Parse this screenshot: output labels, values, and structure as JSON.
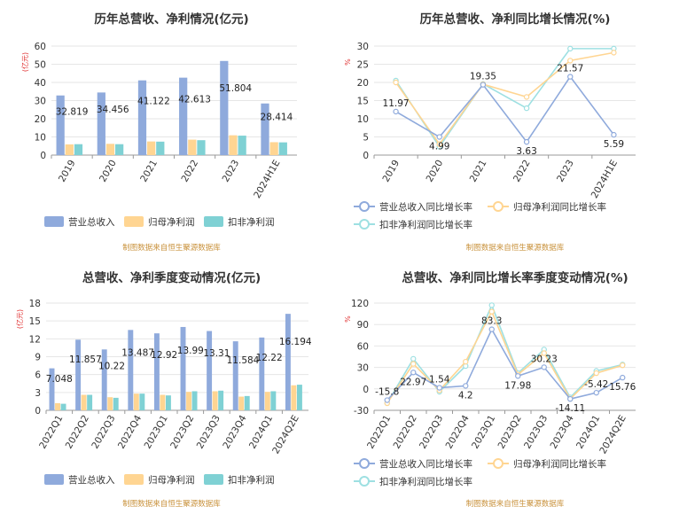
{
  "source_note": "制图数据来自恒生聚源数据库",
  "colors": {
    "revenue": "#8faadc",
    "profit": "#ffd592",
    "deducted": "#7fd1d4",
    "axis": "#666666",
    "grid": "#e6e6e6",
    "unit": "#e03030",
    "source": "#c9923c"
  },
  "chart_data": [
    {
      "type": "bar",
      "title": "历年总营收、净利情况(亿元)",
      "ylabel": "(亿元)",
      "ylim": [
        0,
        60
      ],
      "yticks": [
        0,
        10,
        20,
        30,
        40,
        50,
        60
      ],
      "categories": [
        "2019",
        "2020",
        "2021",
        "2022",
        "2023",
        "2024H1E"
      ],
      "series": [
        {
          "name": "营业总收入",
          "values": [
            32.819,
            34.456,
            41.122,
            42.613,
            51.804,
            28.414
          ],
          "labels": [
            "32.819",
            "34.456",
            "41.122",
            "42.613",
            "51.804",
            "28.414"
          ],
          "color": "#8faadc"
        },
        {
          "name": "归母净利润",
          "values": [
            5.9,
            6.2,
            7.5,
            8.5,
            10.9,
            7.1
          ],
          "color": "#ffd592"
        },
        {
          "name": "扣非净利润",
          "values": [
            6.0,
            6.0,
            7.4,
            8.2,
            10.7,
            7.0
          ],
          "color": "#7fd1d4"
        }
      ],
      "legend_position": "bottom"
    },
    {
      "type": "line",
      "title": "历年总营收、净利同比增长情况(%)",
      "ylabel": "%",
      "ylim": [
        0,
        30
      ],
      "yticks": [
        0,
        5,
        10,
        15,
        20,
        25,
        30
      ],
      "categories": [
        "2019",
        "2020",
        "2021",
        "2022",
        "2023",
        "2024H1E"
      ],
      "series": [
        {
          "name": "营业总收入同比增长率",
          "values": [
            11.97,
            4.99,
            19.35,
            3.63,
            21.57,
            5.59
          ],
          "labels": [
            "11.97",
            "4.99",
            "19.35",
            "3.63",
            "21.57",
            "5.59"
          ],
          "color": "#8faadc"
        },
        {
          "name": "归母净利润同比增长率",
          "values": [
            20.0,
            3.0,
            19.5,
            16.0,
            26.0,
            28.2
          ],
          "color": "#ffd592"
        },
        {
          "name": "扣非净利润同比增长率",
          "values": [
            20.5,
            2.3,
            19.6,
            12.9,
            29.3,
            29.3
          ],
          "color": "#9ee0e2"
        }
      ],
      "legend_position": "bottom"
    },
    {
      "type": "bar",
      "title": "总营收、净利季度变动情况(亿元)",
      "ylabel": "(亿元)",
      "ylim": [
        0,
        18
      ],
      "yticks": [
        0,
        3,
        6,
        9,
        12,
        15,
        18
      ],
      "categories": [
        "2022Q1",
        "2022Q2",
        "2022Q3",
        "2022Q4",
        "2023Q1",
        "2023Q2",
        "2023Q3",
        "2023Q4",
        "2024Q1",
        "2024Q2E"
      ],
      "series": [
        {
          "name": "营业总收入",
          "values": [
            7.048,
            11.857,
            10.22,
            13.487,
            12.92,
            13.99,
            13.31,
            11.584,
            12.22,
            16.194
          ],
          "labels": [
            "7.048",
            "11.857",
            "10.22",
            "13.487",
            "12.92",
            "13.99",
            "13.31",
            "11.584",
            "12.22",
            "16.194"
          ],
          "color": "#8faadc"
        },
        {
          "name": "归母净利润",
          "values": [
            1.2,
            2.6,
            2.2,
            2.8,
            2.6,
            3.1,
            3.2,
            2.3,
            3.1,
            4.2
          ],
          "color": "#ffd592"
        },
        {
          "name": "扣非净利润",
          "values": [
            1.1,
            2.6,
            2.1,
            2.8,
            2.5,
            3.2,
            3.3,
            2.4,
            3.2,
            4.3
          ],
          "color": "#7fd1d4"
        }
      ],
      "legend_position": "bottom"
    },
    {
      "type": "line",
      "title": "总营收、净利同比增长率季度变动情况(%)",
      "ylabel": "%",
      "ylim": [
        -30,
        120
      ],
      "yticks": [
        -30,
        0,
        30,
        60,
        90,
        120
      ],
      "categories": [
        "2022Q1",
        "2022Q2",
        "2022Q3",
        "2022Q4",
        "2023Q1",
        "2023Q2",
        "2023Q3",
        "2023Q4",
        "2024Q1",
        "2024Q2E"
      ],
      "series": [
        {
          "name": "营业总收入同比增长率",
          "values": [
            -15.8,
            22.97,
            1.54,
            4.2,
            83.3,
            17.98,
            30.23,
            -14.11,
            -5.42,
            15.76
          ],
          "labels": [
            "-15.8",
            "22.97",
            "1.54",
            "4.2",
            "83.3",
            "17.98",
            "30.23",
            "-14.11",
            "-5.42",
            "15.76"
          ],
          "color": "#8faadc"
        },
        {
          "name": "归母净利润同比增长率",
          "values": [
            -20,
            35,
            -2,
            38,
            108,
            20,
            50,
            -14,
            22,
            33
          ],
          "color": "#ffd592"
        },
        {
          "name": "扣非净利润同比增长率",
          "values": [
            -20,
            42,
            -4,
            32,
            117,
            22,
            55,
            -12,
            25,
            34
          ],
          "color": "#9ee0e2"
        }
      ],
      "legend_position": "bottom"
    }
  ]
}
